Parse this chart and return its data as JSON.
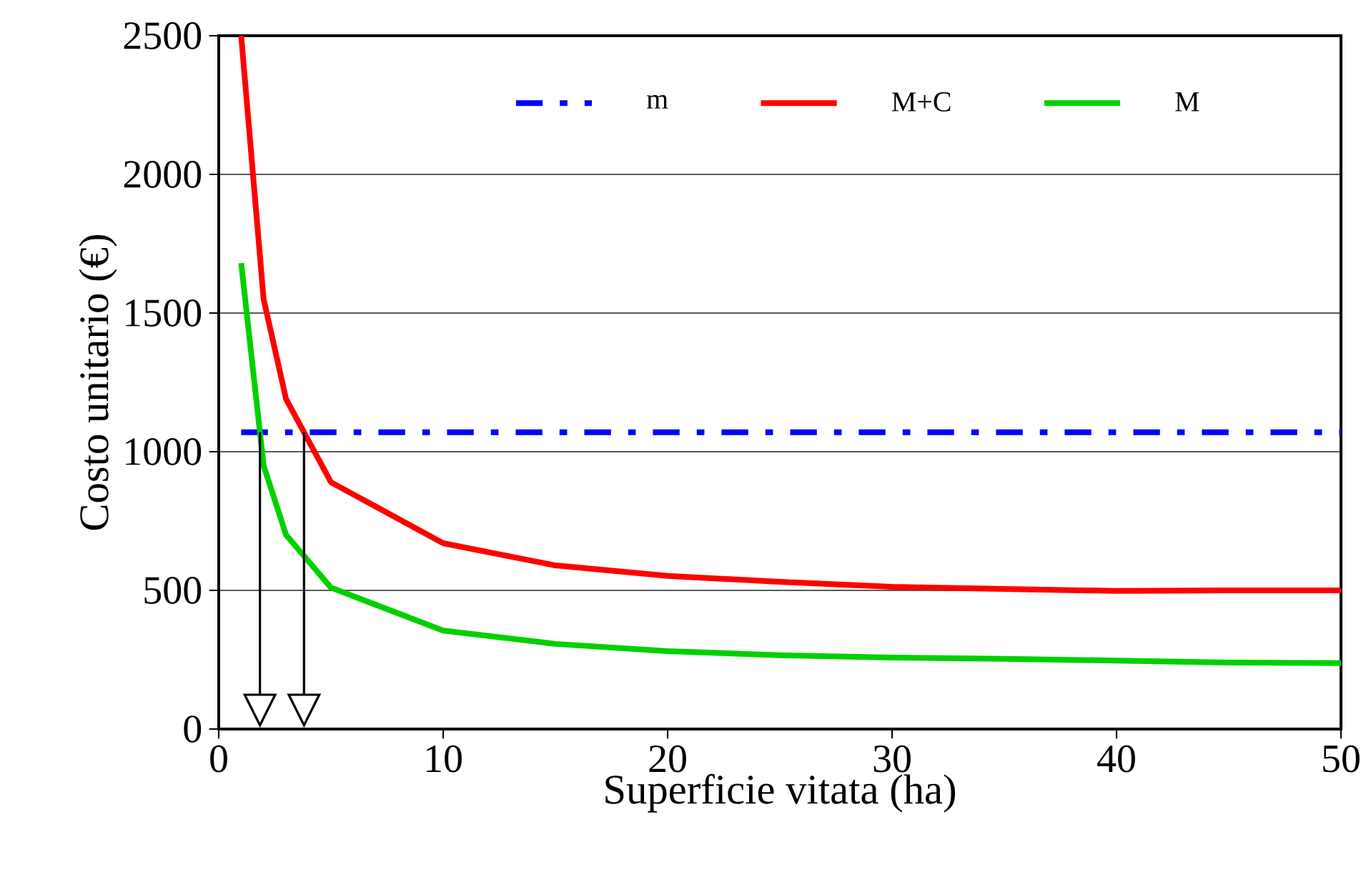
{
  "chart_data": {
    "type": "line",
    "xlabel": "Superficie vitata (ha)",
    "ylabel": "Costo unitario (€)",
    "xlim": [
      0,
      50
    ],
    "xticks": [
      0,
      10,
      20,
      30,
      40,
      50
    ],
    "ylim": [
      0,
      2500
    ],
    "yticks": [
      0,
      500,
      1000,
      1500,
      2000,
      2500
    ],
    "grid": "y",
    "legend": "top",
    "marker": "none",
    "series": [
      {
        "name": "m",
        "color": "#0000ff",
        "line_style": "dashdot",
        "x": [
          1,
          50
        ],
        "values": [
          1070,
          1070
        ]
      },
      {
        "name": "M+C",
        "color": "#ff0000",
        "line_style": "solid",
        "x": [
          1,
          2,
          3,
          5,
          10,
          15,
          20,
          25,
          30,
          35,
          40,
          45,
          50
        ],
        "values": [
          2500,
          1550,
          1190,
          890,
          670,
          590,
          552,
          531,
          513,
          505,
          498,
          500,
          500
        ]
      },
      {
        "name": "M",
        "color": "#00d000",
        "line_style": "solid",
        "x": [
          1,
          2,
          3,
          5,
          10,
          15,
          20,
          25,
          30,
          35,
          40,
          45,
          50
        ],
        "values": [
          1680,
          950,
          700,
          510,
          355,
          307,
          281,
          266,
          258,
          253,
          247,
          240,
          238
        ]
      }
    ]
  }
}
